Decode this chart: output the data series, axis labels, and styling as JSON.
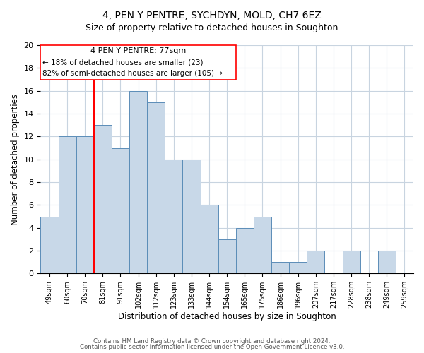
{
  "title1": "4, PEN Y PENTRE, SYCHDYN, MOLD, CH7 6EZ",
  "title2": "Size of property relative to detached houses in Soughton",
  "xlabel": "Distribution of detached houses by size in Soughton",
  "ylabel": "Number of detached properties",
  "categories": [
    "49sqm",
    "60sqm",
    "70sqm",
    "81sqm",
    "91sqm",
    "102sqm",
    "112sqm",
    "123sqm",
    "133sqm",
    "144sqm",
    "154sqm",
    "165sqm",
    "175sqm",
    "186sqm",
    "196sqm",
    "207sqm",
    "217sqm",
    "228sqm",
    "238sqm",
    "249sqm",
    "259sqm"
  ],
  "values": [
    5,
    12,
    12,
    13,
    11,
    16,
    15,
    10,
    10,
    6,
    3,
    4,
    5,
    1,
    1,
    2,
    0,
    2,
    0,
    2,
    0
  ],
  "bar_color": "#c8d8e8",
  "bar_edge_color": "#5b8db8",
  "grid_color": "#c8d4e0",
  "annotation_text_line1": "4 PEN Y PENTRE: 77sqm",
  "annotation_text_line2": "← 18% of detached houses are smaller (23)",
  "annotation_text_line3": "82% of semi-detached houses are larger (105) →",
  "red_line_x": 2.5,
  "ylim": [
    0,
    20
  ],
  "yticks": [
    0,
    2,
    4,
    6,
    8,
    10,
    12,
    14,
    16,
    18,
    20
  ],
  "footer1": "Contains HM Land Registry data © Crown copyright and database right 2024.",
  "footer2": "Contains public sector information licensed under the Open Government Licence v3.0."
}
